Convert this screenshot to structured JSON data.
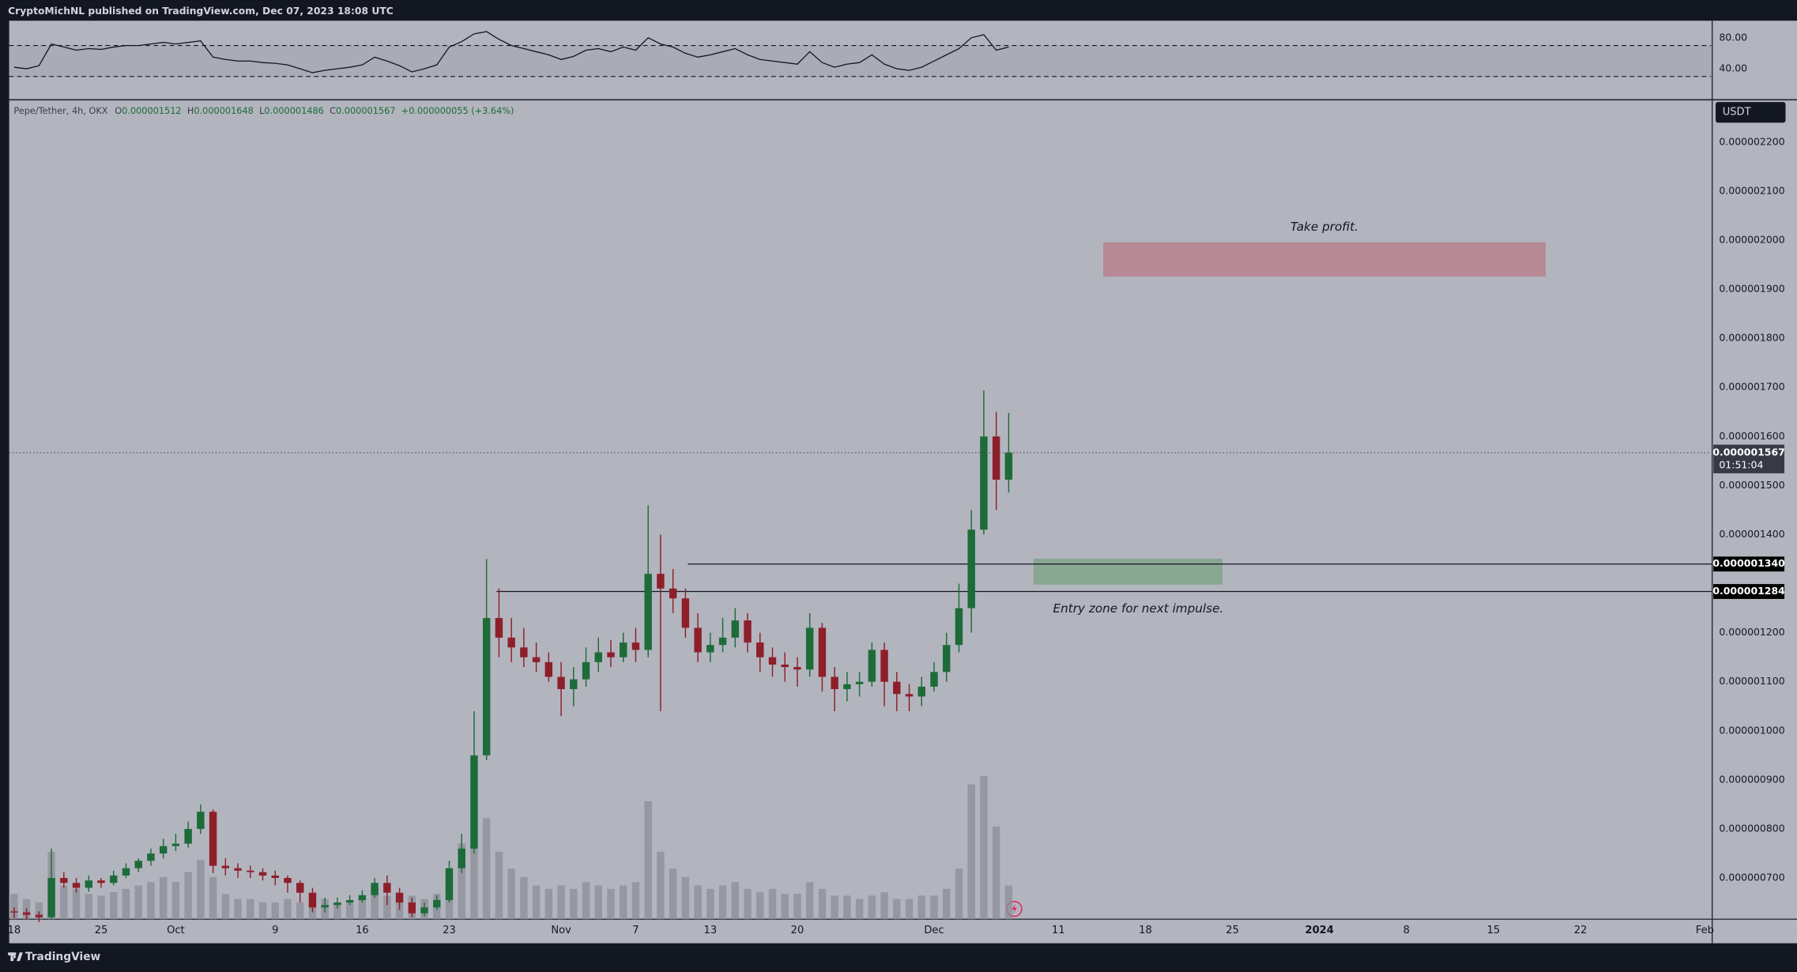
{
  "header": "CryptoMichNL published on TradingView.com, Dec 07, 2023 18:08 UTC",
  "footer": "TradingView",
  "chart_data": {
    "type": "candlestick",
    "symbol": "Pepe/Tether, 4h, OKX",
    "legend_items": [
      {
        "key": "O",
        "value": "0.000001512"
      },
      {
        "key": "H",
        "value": "0.000001648"
      },
      {
        "key": "L",
        "value": "0.000001486"
      },
      {
        "key": "C",
        "value": "0.000001567"
      }
    ],
    "change": "+0.000000055 (+3.64%)",
    "currency": "USDT",
    "up_color": "#1e6b3a",
    "down_color": "#8e1f2a",
    "volume_color": "#8b8e97",
    "grid": false,
    "xlim": [
      -0.4,
      136.5
    ],
    "xticks": [
      {
        "value": 0,
        "label": "18"
      },
      {
        "value": 7,
        "label": "25"
      },
      {
        "value": 13,
        "label": "Oct"
      },
      {
        "value": 21,
        "label": "9"
      },
      {
        "value": 28,
        "label": "16"
      },
      {
        "value": 35,
        "label": "23"
      },
      {
        "value": 44,
        "label": "Nov"
      },
      {
        "value": 50,
        "label": "7"
      },
      {
        "value": 56,
        "label": "13"
      },
      {
        "value": 63,
        "label": "20"
      },
      {
        "value": 74,
        "label": "Dec"
      },
      {
        "value": 84,
        "label": "11"
      },
      {
        "value": 91,
        "label": "18"
      },
      {
        "value": 98,
        "label": "25"
      },
      {
        "value": 105,
        "label": "2024",
        "bold": true
      },
      {
        "value": 112,
        "label": "8"
      },
      {
        "value": 119,
        "label": "15"
      },
      {
        "value": 126,
        "label": "22"
      },
      {
        "value": 136,
        "label": "Feb"
      }
    ],
    "ylim": [
      6.16e-07,
      2.284e-06
    ],
    "yticks": [
      {
        "value": 7e-07,
        "label": "0.000000700"
      },
      {
        "value": 8e-07,
        "label": "0.000000800"
      },
      {
        "value": 9e-07,
        "label": "0.000000900"
      },
      {
        "value": 1e-06,
        "label": "0.000001000"
      },
      {
        "value": 1.1e-06,
        "label": "0.000001100"
      },
      {
        "value": 1.2e-06,
        "label": "0.000001200"
      },
      {
        "value": 1.4e-06,
        "label": "0.000001400"
      },
      {
        "value": 1.5e-06,
        "label": "0.000001500"
      },
      {
        "value": 1.6e-06,
        "label": "0.000001600"
      },
      {
        "value": 1.7e-06,
        "label": "0.000001700"
      },
      {
        "value": 1.8e-06,
        "label": "0.000001800"
      },
      {
        "value": 1.9e-06,
        "label": "0.000001900"
      },
      {
        "value": 2e-06,
        "label": "0.000002000"
      },
      {
        "value": 2.1e-06,
        "label": "0.000002100"
      },
      {
        "value": 2.2e-06,
        "label": "0.000002200"
      }
    ],
    "x": [
      0,
      1,
      2,
      3,
      4,
      5,
      6,
      7,
      8,
      9,
      10,
      11,
      12,
      13,
      14,
      15,
      16,
      17,
      18,
      19,
      20,
      21,
      22,
      23,
      24,
      25,
      26,
      27,
      28,
      29,
      30,
      31,
      32,
      33,
      34,
      35,
      36,
      37,
      38,
      39,
      40,
      41,
      42,
      43,
      44,
      45,
      46,
      47,
      48,
      49,
      50,
      51,
      52,
      53,
      54,
      55,
      56,
      57,
      58,
      59,
      60,
      61,
      62,
      63,
      64,
      65,
      66,
      67,
      68,
      69,
      70,
      71,
      72,
      73,
      74,
      75,
      76,
      77,
      78,
      79,
      80
    ],
    "ohlc": {
      "open": [
        6.32e-07,
        6.3e-07,
        6.25e-07,
        6.2e-07,
        7e-07,
        6.9e-07,
        6.8e-07,
        6.95e-07,
        6.9e-07,
        7.05e-07,
        7.2e-07,
        7.35e-07,
        7.5e-07,
        7.65e-07,
        7.7e-07,
        8e-07,
        8.35e-07,
        7.25e-07,
        7.2e-07,
        7.15e-07,
        7.12e-07,
        7.05e-07,
        7e-07,
        6.9e-07,
        6.7e-07,
        6.4e-07,
        6.45e-07,
        6.5e-07,
        6.55e-07,
        6.65e-07,
        6.9e-07,
        6.7e-07,
        6.5e-07,
        6.28e-07,
        6.4e-07,
        6.55e-07,
        7.2e-07,
        7.6e-07,
        9.5e-07,
        1.23e-06,
        1.19e-06,
        1.17e-06,
        1.15e-06,
        1.14e-06,
        1.11e-06,
        1.085e-06,
        1.105e-06,
        1.14e-06,
        1.16e-06,
        1.15e-06,
        1.18e-06,
        1.165e-06,
        1.32e-06,
        1.29e-06,
        1.27e-06,
        1.21e-06,
        1.16e-06,
        1.175e-06,
        1.19e-06,
        1.225e-06,
        1.18e-06,
        1.15e-06,
        1.135e-06,
        1.13e-06,
        1.125e-06,
        1.21e-06,
        1.11e-06,
        1.085e-06,
        1.095e-06,
        1.1e-06,
        1.165e-06,
        1.1e-06,
        1.075e-06,
        1.07e-06,
        1.09e-06,
        1.12e-06,
        1.175e-06,
        1.25e-06,
        1.41e-06,
        1.6e-06,
        1.512e-06
      ],
      "high": [
        6.4e-07,
        6.38e-07,
        6.32e-07,
        7.6e-07,
        7.12e-07,
        7e-07,
        7.05e-07,
        7e-07,
        7.15e-07,
        7.3e-07,
        7.4e-07,
        7.6e-07,
        7.8e-07,
        7.9e-07,
        8.15e-07,
        8.5e-07,
        8.4e-07,
        7.4e-07,
        7.3e-07,
        7.25e-07,
        7.2e-07,
        7.15e-07,
        7.05e-07,
        6.95e-07,
        6.8e-07,
        6.6e-07,
        6.6e-07,
        6.65e-07,
        6.75e-07,
        7e-07,
        7.05e-07,
        6.8e-07,
        6.6e-07,
        6.5e-07,
        6.65e-07,
        7.35e-07,
        7.9e-07,
        1.04e-06,
        1.35e-06,
        1.29e-06,
        1.23e-06,
        1.21e-06,
        1.18e-06,
        1.16e-06,
        1.14e-06,
        1.13e-06,
        1.17e-06,
        1.19e-06,
        1.185e-06,
        1.2e-06,
        1.21e-06,
        1.46e-06,
        1.4e-06,
        1.33e-06,
        1.29e-06,
        1.24e-06,
        1.2e-06,
        1.23e-06,
        1.25e-06,
        1.24e-06,
        1.2e-06,
        1.17e-06,
        1.16e-06,
        1.15e-06,
        1.24e-06,
        1.22e-06,
        1.13e-06,
        1.12e-06,
        1.12e-06,
        1.18e-06,
        1.18e-06,
        1.12e-06,
        1.095e-06,
        1.11e-06,
        1.14e-06,
        1.2e-06,
        1.3e-06,
        1.45e-06,
        1.694e-06,
        1.65e-06,
        1.648e-06
      ],
      "low": [
        6.18e-07,
        6.15e-07,
        6.1e-07,
        6.15e-07,
        6.8e-07,
        6.7e-07,
        6.72e-07,
        6.8e-07,
        6.85e-07,
        7e-07,
        7.12e-07,
        7.25e-07,
        7.4e-07,
        7.55e-07,
        7.62e-07,
        7.9e-07,
        7.1e-07,
        7.05e-07,
        7e-07,
        7e-07,
        6.95e-07,
        6.85e-07,
        6.7e-07,
        6.5e-07,
        6.3e-07,
        6.3e-07,
        6.38e-07,
        6.45e-07,
        6.5e-07,
        6.6e-07,
        6.45e-07,
        6.35e-07,
        6.2e-07,
        6.22e-07,
        6.35e-07,
        6.5e-07,
        7.1e-07,
        7.5e-07,
        9.4e-07,
        1.15e-06,
        1.14e-06,
        1.13e-06,
        1.12e-06,
        1.1e-06,
        1.03e-06,
        1.05e-06,
        1.09e-06,
        1.12e-06,
        1.13e-06,
        1.14e-06,
        1.14e-06,
        1.15e-06,
        1.04e-06,
        1.24e-06,
        1.19e-06,
        1.14e-06,
        1.14e-06,
        1.16e-06,
        1.17e-06,
        1.16e-06,
        1.12e-06,
        1.11e-06,
        1.1e-06,
        1.09e-06,
        1.11e-06,
        1.08e-06,
        1.04e-06,
        1.06e-06,
        1.07e-06,
        1.09e-06,
        1.05e-06,
        1.04e-06,
        1.04e-06,
        1.05e-06,
        1.08e-06,
        1.1e-06,
        1.16e-06,
        1.2e-06,
        1.4e-06,
        1.45e-06,
        1.486e-06
      ],
      "close": [
        6.3e-07,
        6.25e-07,
        6.2e-07,
        7e-07,
        6.9e-07,
        6.8e-07,
        6.95e-07,
        6.9e-07,
        7.05e-07,
        7.2e-07,
        7.35e-07,
        7.5e-07,
        7.65e-07,
        7.7e-07,
        8e-07,
        8.35e-07,
        7.25e-07,
        7.2e-07,
        7.15e-07,
        7.12e-07,
        7.05e-07,
        7e-07,
        6.9e-07,
        6.7e-07,
        6.4e-07,
        6.45e-07,
        6.5e-07,
        6.55e-07,
        6.65e-07,
        6.9e-07,
        6.7e-07,
        6.5e-07,
        6.28e-07,
        6.4e-07,
        6.55e-07,
        7.2e-07,
        7.6e-07,
        9.5e-07,
        1.23e-06,
        1.19e-06,
        1.17e-06,
        1.15e-06,
        1.14e-06,
        1.11e-06,
        1.085e-06,
        1.105e-06,
        1.14e-06,
        1.16e-06,
        1.15e-06,
        1.18e-06,
        1.165e-06,
        1.32e-06,
        1.29e-06,
        1.27e-06,
        1.21e-06,
        1.16e-06,
        1.175e-06,
        1.19e-06,
        1.225e-06,
        1.18e-06,
        1.15e-06,
        1.135e-06,
        1.13e-06,
        1.125e-06,
        1.21e-06,
        1.11e-06,
        1.085e-06,
        1.095e-06,
        1.1e-06,
        1.165e-06,
        1.1e-06,
        1.075e-06,
        1.07e-06,
        1.09e-06,
        1.12e-06,
        1.175e-06,
        1.25e-06,
        1.41e-06,
        1.6e-06,
        1.512e-06,
        1.567e-06
      ]
    },
    "volume": [
      15,
      12,
      10,
      40,
      20,
      18,
      15,
      14,
      16,
      18,
      20,
      22,
      25,
      22,
      28,
      35,
      25,
      15,
      12,
      12,
      10,
      10,
      12,
      10,
      14,
      12,
      10,
      10,
      12,
      18,
      14,
      12,
      14,
      12,
      15,
      30,
      45,
      80,
      60,
      40,
      30,
      25,
      20,
      18,
      20,
      18,
      22,
      20,
      18,
      20,
      22,
      70,
      40,
      30,
      25,
      20,
      18,
      20,
      22,
      18,
      16,
      18,
      15,
      15,
      22,
      18,
      14,
      14,
      12,
      14,
      16,
      12,
      12,
      14,
      14,
      18,
      30,
      80,
      85,
      55,
      20
    ],
    "rsi": {
      "ylim": [
        1.5,
        102
      ],
      "yticks": [
        {
          "value": 80,
          "label": "80.00"
        },
        {
          "value": 40,
          "label": "40.00"
        }
      ],
      "bands": [
        70,
        30
      ],
      "values": [
        42,
        40,
        44,
        72,
        68,
        64,
        66,
        65,
        68,
        70,
        70,
        72,
        74,
        72,
        74,
        76,
        55,
        52,
        50,
        50,
        48,
        47,
        45,
        40,
        35,
        38,
        40,
        42,
        45,
        55,
        50,
        44,
        36,
        40,
        45,
        68,
        75,
        85,
        88,
        78,
        70,
        66,
        62,
        58,
        52,
        56,
        64,
        66,
        62,
        68,
        64,
        80,
        72,
        68,
        60,
        55,
        58,
        62,
        66,
        58,
        52,
        50,
        48,
        46,
        62,
        48,
        42,
        46,
        48,
        58,
        46,
        40,
        38,
        42,
        50,
        58,
        66,
        80,
        84,
        64,
        68
      ]
    },
    "zones": [
      {
        "label": "Take profit.",
        "x": [
          87.6,
          123.2
        ],
        "y": [
          1.926e-06,
          1.996e-06
        ],
        "color": "#b58a95",
        "text_side": "above"
      },
      {
        "label": "Entry zone for next impulse.",
        "x": [
          82.0,
          97.2
        ],
        "y": [
          1.298e-06,
          1.351e-06
        ],
        "color": "#88a891",
        "text_side": "below"
      }
    ],
    "levels": [
      {
        "value": 1.34e-06,
        "label": "0.000001340",
        "from": 54.2
      },
      {
        "value": 1.284e-06,
        "label": "0.000001284",
        "from": 38.8
      }
    ],
    "last_price": {
      "value": 1.567e-06,
      "label": "0.000001567",
      "countdown": "01:51:04"
    }
  }
}
